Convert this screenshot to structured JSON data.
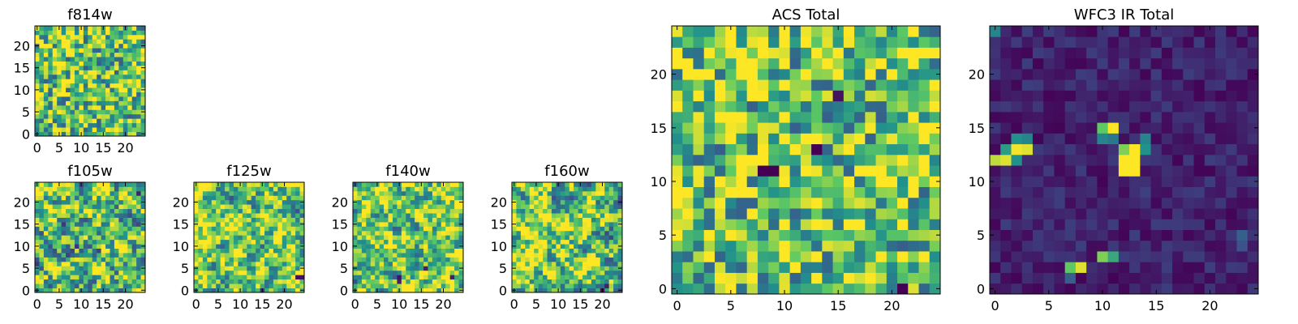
{
  "figure": {
    "colormap": "viridis",
    "colors": {
      "background": "#ffffff",
      "frame": "#000000",
      "viridis_stops": [
        "#440154",
        "#3b528b",
        "#21918c",
        "#5ec962",
        "#fde725"
      ]
    }
  },
  "chart_data": [
    {
      "type": "heatmap",
      "title": "f814w",
      "grid_size": 25,
      "xlim": [
        -0.5,
        24.5
      ],
      "ylim": [
        -0.5,
        24.5
      ],
      "xticks": [
        "0",
        "5",
        "10",
        "15",
        "20"
      ],
      "yticks": [
        "0",
        "5",
        "10",
        "15",
        "20"
      ],
      "value_range": [
        0,
        1
      ],
      "values_description": "noisy field, mostly green-yellow (approx 0.45-0.95) with scattered dark pixels",
      "seed": 11,
      "base": 0.72,
      "noise_amp": 0.42,
      "smoothness": 0,
      "blobs": []
    },
    {
      "type": "heatmap",
      "title": "f105w",
      "grid_size": 25,
      "xlim": [
        -0.5,
        24.5
      ],
      "ylim": [
        -0.5,
        24.5
      ],
      "xticks": [
        "0",
        "5",
        "10",
        "15",
        "20"
      ],
      "yticks": [
        "0",
        "5",
        "10",
        "15",
        "20"
      ],
      "value_range": [
        0,
        1
      ],
      "seed": 23,
      "base": 0.7,
      "noise_amp": 0.45,
      "smoothness": 1,
      "blobs": [
        {
          "x": 23,
          "y": 22,
          "v": 0.1
        },
        {
          "x": 9,
          "y": 10,
          "v": 0.15
        },
        {
          "x": 14,
          "y": 9,
          "v": 0.2
        }
      ]
    },
    {
      "type": "heatmap",
      "title": "f125w",
      "grid_size": 25,
      "xlim": [
        -0.5,
        24.5
      ],
      "ylim": [
        -0.5,
        24.5
      ],
      "xticks": [
        "0",
        "5",
        "10",
        "15",
        "20"
      ],
      "yticks": [
        "0",
        "5",
        "10",
        "15",
        "20"
      ],
      "value_range": [
        0,
        1
      ],
      "seed": 37,
      "base": 0.75,
      "noise_amp": 0.4,
      "smoothness": 1,
      "blobs": [
        {
          "x": 23,
          "y": 3,
          "v": 0.05
        },
        {
          "x": 24,
          "y": 3,
          "v": 0.05
        },
        {
          "x": 15,
          "y": 0,
          "v": 0.15
        }
      ]
    },
    {
      "type": "heatmap",
      "title": "f140w",
      "grid_size": 25,
      "xlim": [
        -0.5,
        24.5
      ],
      "ylim": [
        -0.5,
        24.5
      ],
      "xticks": [
        "0",
        "5",
        "10",
        "15",
        "20"
      ],
      "yticks": [
        "0",
        "5",
        "10",
        "15",
        "20"
      ],
      "value_range": [
        0,
        1
      ],
      "seed": 41,
      "base": 0.75,
      "noise_amp": 0.4,
      "smoothness": 1,
      "blobs": [
        {
          "x": 10,
          "y": 3,
          "v": 0.05
        },
        {
          "x": 10,
          "y": 2,
          "v": 0.1
        },
        {
          "x": 16,
          "y": 5,
          "v": 0.1
        },
        {
          "x": 22,
          "y": 3,
          "v": 0.1
        }
      ]
    },
    {
      "type": "heatmap",
      "title": "f160w",
      "grid_size": 25,
      "xlim": [
        -0.5,
        24.5
      ],
      "ylim": [
        -0.5,
        24.5
      ],
      "xticks": [
        "0",
        "5",
        "10",
        "15",
        "20"
      ],
      "yticks": [
        "0",
        "5",
        "10",
        "15",
        "20"
      ],
      "value_range": [
        0,
        1
      ],
      "seed": 53,
      "base": 0.75,
      "noise_amp": 0.42,
      "smoothness": 1,
      "blobs": [
        {
          "x": 20,
          "y": 0,
          "v": 0.05
        },
        {
          "x": 21,
          "y": 1,
          "v": 0.1
        }
      ]
    },
    {
      "type": "heatmap",
      "title": "ACS Total",
      "grid_size": 25,
      "xlim": [
        -0.5,
        24.5
      ],
      "ylim": [
        -0.5,
        24.5
      ],
      "xticks": [
        "0",
        "5",
        "10",
        "15",
        "20"
      ],
      "yticks": [
        "0",
        "5",
        "10",
        "15",
        "20"
      ],
      "value_range": [
        0,
        1
      ],
      "values_description": "noisy field, mostly green-yellow with scattered dark pixels",
      "seed": 11,
      "base": 0.72,
      "noise_amp": 0.42,
      "smoothness": 0,
      "blobs": [
        {
          "x": 8,
          "y": 11,
          "v": 0.0
        },
        {
          "x": 9,
          "y": 11,
          "v": 0.0
        },
        {
          "x": 13,
          "y": 13,
          "v": 0.0
        },
        {
          "x": 15,
          "y": 18,
          "v": 0.05
        },
        {
          "x": 21,
          "y": 0,
          "v": 0.0
        }
      ]
    },
    {
      "type": "heatmap",
      "title": "WFC3 IR Total",
      "grid_size": 25,
      "xlim": [
        -0.5,
        24.5
      ],
      "ylim": [
        -0.5,
        24.5
      ],
      "xticks": [
        "0",
        "5",
        "10",
        "15",
        "20"
      ],
      "yticks": [
        "0",
        "5",
        "10",
        "15",
        "20"
      ],
      "value_range": [
        0,
        1
      ],
      "values_description": "mostly dark purple background with a few bright compact sources",
      "seed": 67,
      "base": 0.1,
      "noise_amp": 0.09,
      "smoothness": 0,
      "blobs": [
        {
          "x": 0,
          "y": 24,
          "v": 0.45
        },
        {
          "x": 0,
          "y": 12,
          "v": 0.9
        },
        {
          "x": 1,
          "y": 12,
          "v": 0.95
        },
        {
          "x": 2,
          "y": 13,
          "v": 0.98
        },
        {
          "x": 3,
          "y": 13,
          "v": 0.95
        },
        {
          "x": 1,
          "y": 13,
          "v": 0.55
        },
        {
          "x": 2,
          "y": 14,
          "v": 0.5
        },
        {
          "x": 3,
          "y": 14,
          "v": 0.45
        },
        {
          "x": 2,
          "y": 12,
          "v": 0.5
        },
        {
          "x": 10,
          "y": 15,
          "v": 0.75
        },
        {
          "x": 11,
          "y": 15,
          "v": 1.0
        },
        {
          "x": 10,
          "y": 14,
          "v": 0.45
        },
        {
          "x": 11,
          "y": 14,
          "v": 0.4
        },
        {
          "x": 12,
          "y": 13,
          "v": 0.8
        },
        {
          "x": 13,
          "y": 13,
          "v": 1.0
        },
        {
          "x": 12,
          "y": 12,
          "v": 1.0
        },
        {
          "x": 13,
          "y": 12,
          "v": 1.0
        },
        {
          "x": 12,
          "y": 11,
          "v": 1.0
        },
        {
          "x": 13,
          "y": 11,
          "v": 1.0
        },
        {
          "x": 14,
          "y": 14,
          "v": 0.45
        },
        {
          "x": 14,
          "y": 13,
          "v": 0.5
        },
        {
          "x": 7,
          "y": 2,
          "v": 0.75
        },
        {
          "x": 8,
          "y": 2,
          "v": 0.95
        },
        {
          "x": 7,
          "y": 1,
          "v": 0.3
        },
        {
          "x": 10,
          "y": 3,
          "v": 0.8
        },
        {
          "x": 11,
          "y": 3,
          "v": 0.6
        },
        {
          "x": 23,
          "y": 5,
          "v": 0.3
        },
        {
          "x": 23,
          "y": 4,
          "v": 0.25
        }
      ]
    }
  ]
}
